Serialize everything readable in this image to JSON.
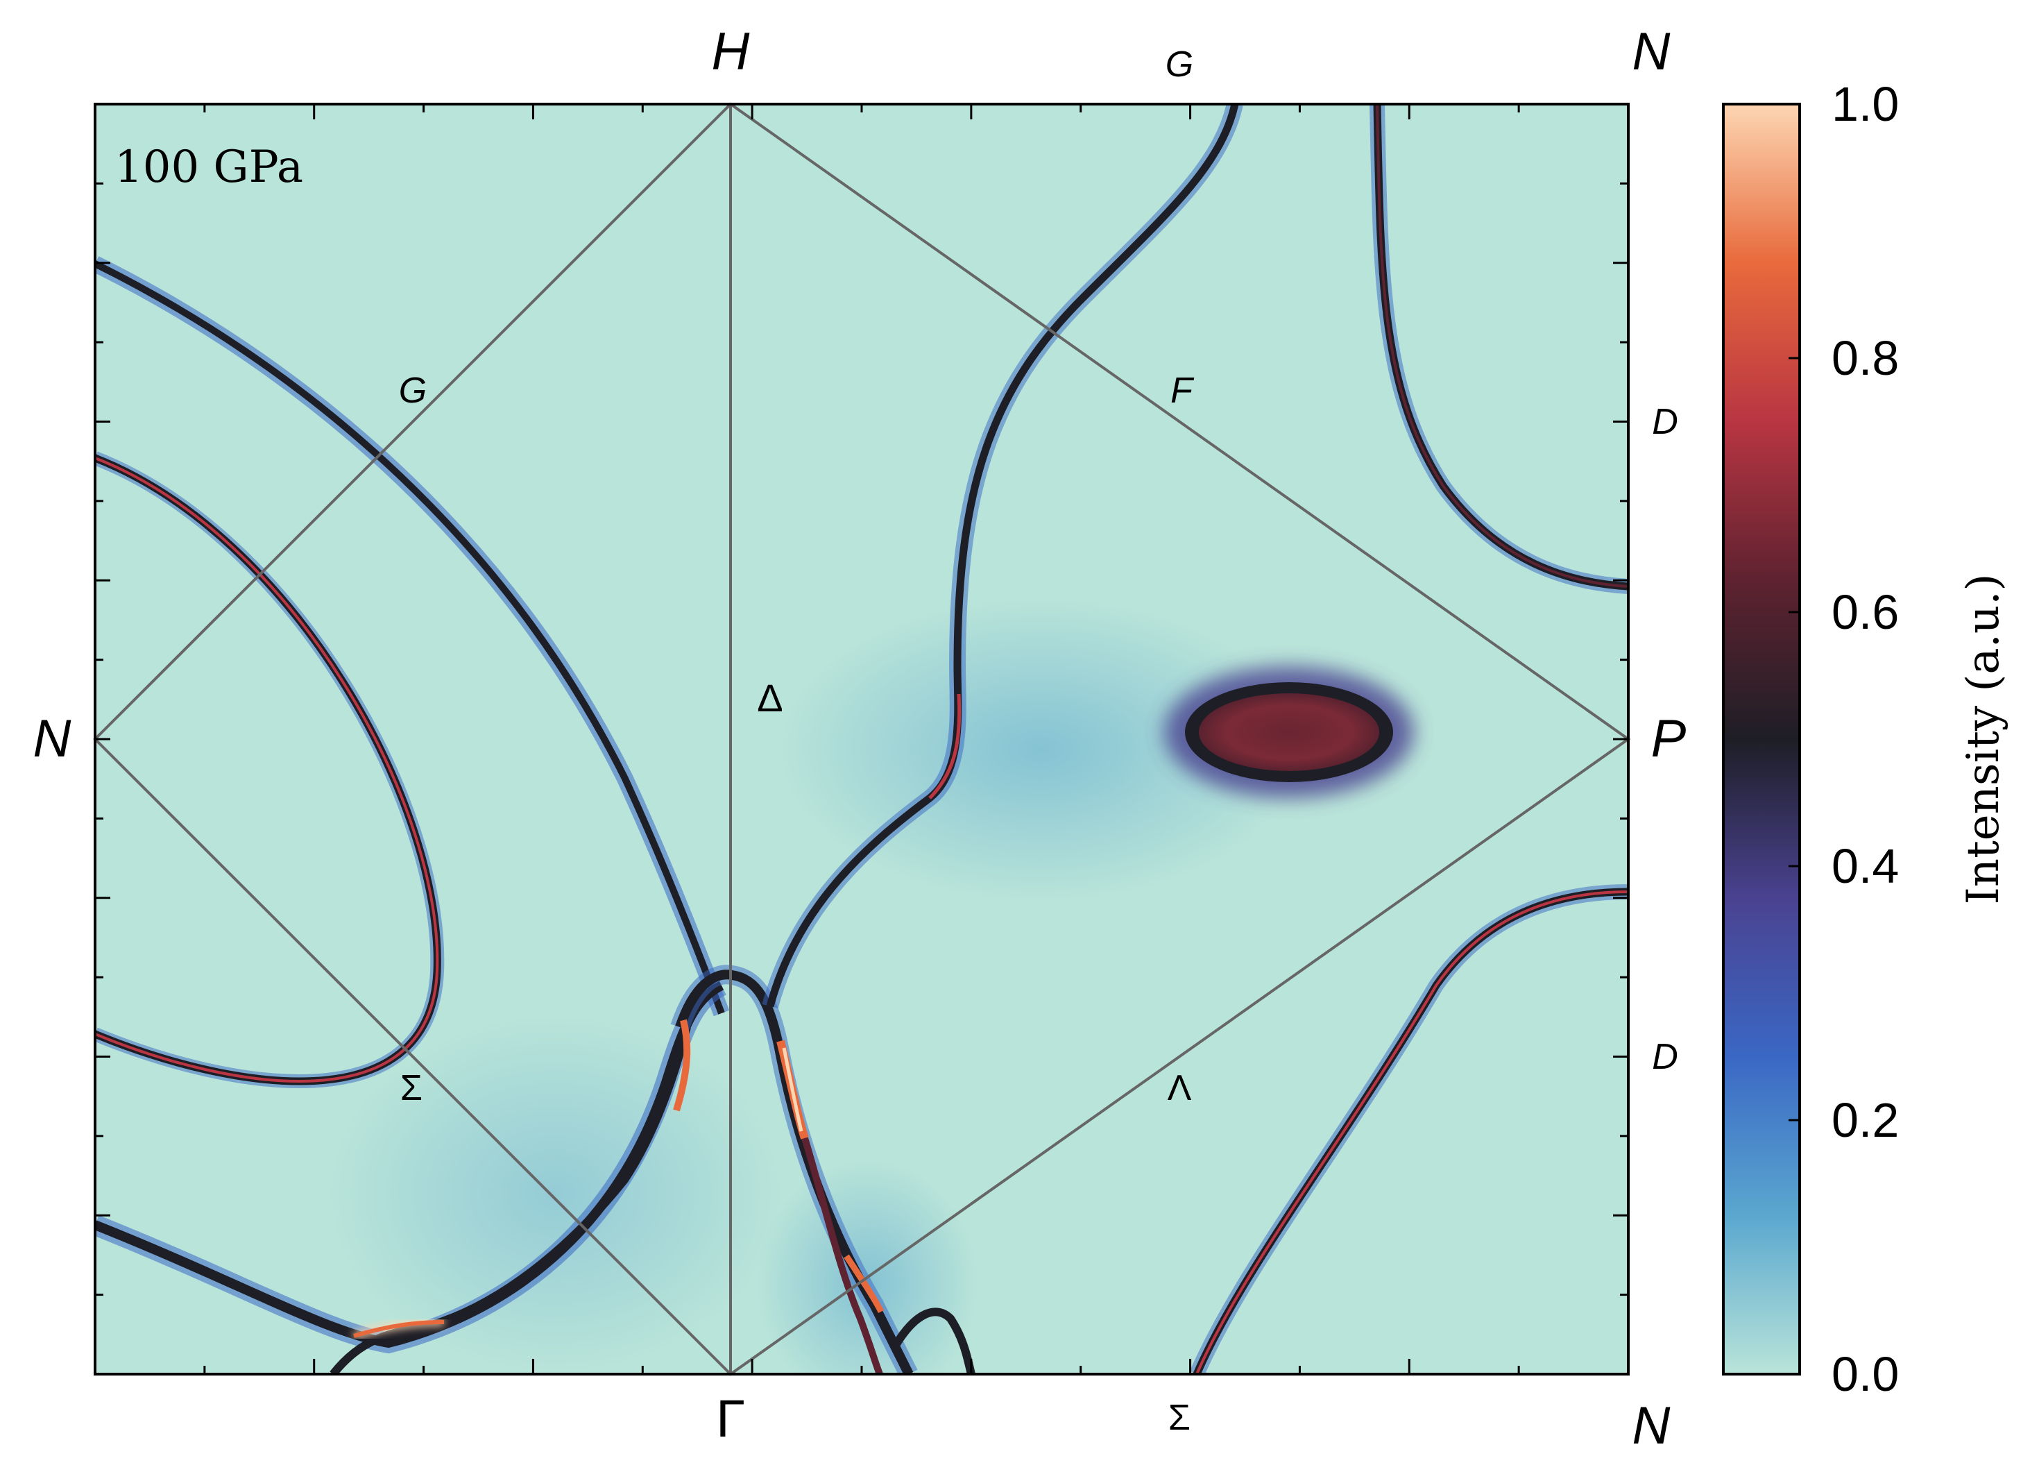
{
  "chart_data": {
    "type": "heatmap",
    "title": "",
    "annotation": "100 GPa",
    "colorbar": {
      "label": "Intensity (a.u.)",
      "range": [
        0.0,
        1.0
      ],
      "ticks": [
        "0.0",
        "0.2",
        "0.4",
        "0.6",
        "0.8",
        "1.0"
      ],
      "colors": [
        "#b9e4d9",
        "#5aa7cf",
        "#3a67c4",
        "#4a4290",
        "#1e1e26",
        "#5e2230",
        "#b93542",
        "#e86a3c",
        "#fcd6b2"
      ]
    },
    "points": {
      "corners": [
        "H",
        "N",
        "N",
        "P",
        "N",
        "Γ"
      ],
      "high_symmetry_labels": [
        "H",
        "G",
        "N",
        "N",
        "P",
        "Γ",
        "Σ",
        "N",
        "D",
        "D",
        "Δ",
        "G",
        "F",
        "Σ",
        "Λ"
      ]
    },
    "labels": {
      "top_H": "H",
      "top_G": "G",
      "top_right_N": "N",
      "left_N": "N",
      "right_P": "P",
      "bottom_gamma": "Γ",
      "bottom_sigma": "Σ",
      "bottom_right_N": "N",
      "right_D_upper": "D",
      "right_D_lower": "D",
      "inner_delta": "Δ",
      "inner_G": "G",
      "inner_F": "F",
      "inner_sigma": "Σ",
      "inner_lambda": "Λ"
    },
    "line_color": "#666666",
    "background_color": "#b9e4d9",
    "blob_intensity": 0.65
  }
}
